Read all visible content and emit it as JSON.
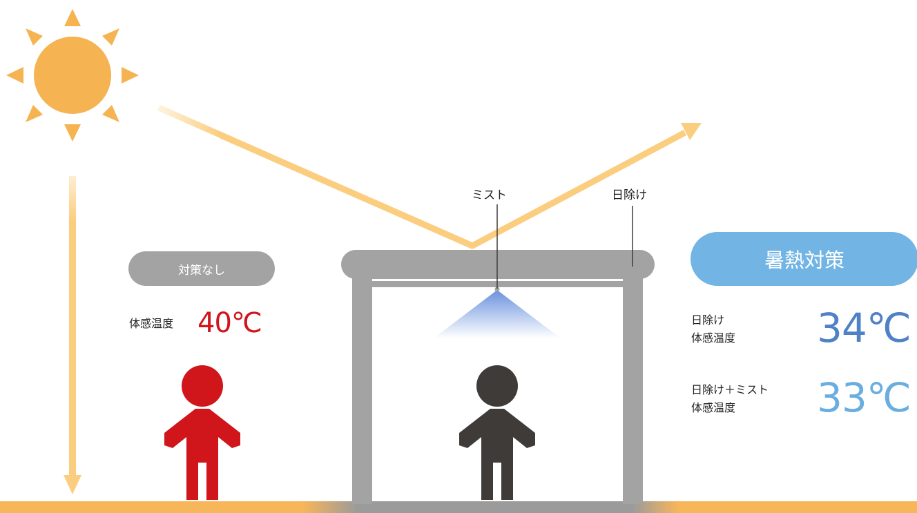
{
  "colors": {
    "sun": "#f5b352",
    "ray": "#fbcd7e",
    "structure": "#a3a3a3",
    "ground_sun": "#f7b65a",
    "ground_shade": "#9b9b9b",
    "mist": "#4f7ed8",
    "person_none": "#d0151b",
    "person_shade": "#3f3b39",
    "pill_none": "#a3a3a3",
    "pill_measure": "#72b4e4",
    "temp_none": "#d0151b",
    "temp_shade": "#4f81c7",
    "temp_mist": "#6aaee0"
  },
  "labels": {
    "mist": "ミスト",
    "sunshade": "日除け"
  },
  "no_measure": {
    "badge": "対策なし",
    "temp_label": "体感温度",
    "temp_value": "40℃"
  },
  "measures": {
    "badge": "暑熱対策",
    "shade": {
      "line1": "日除け",
      "line2": "体感温度",
      "temp_value": "34℃"
    },
    "shade_mist": {
      "line1": "日除け＋ミスト",
      "line2": "体感温度",
      "temp_value": "33℃"
    }
  }
}
